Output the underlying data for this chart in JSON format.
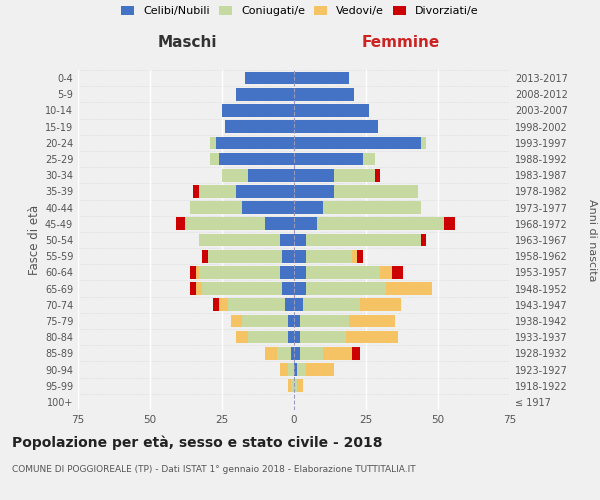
{
  "age_groups": [
    "100+",
    "95-99",
    "90-94",
    "85-89",
    "80-84",
    "75-79",
    "70-74",
    "65-69",
    "60-64",
    "55-59",
    "50-54",
    "45-49",
    "40-44",
    "35-39",
    "30-34",
    "25-29",
    "20-24",
    "15-19",
    "10-14",
    "5-9",
    "0-4"
  ],
  "birth_years": [
    "≤ 1917",
    "1918-1922",
    "1923-1927",
    "1928-1932",
    "1933-1937",
    "1938-1942",
    "1943-1947",
    "1948-1952",
    "1953-1957",
    "1958-1962",
    "1963-1967",
    "1968-1972",
    "1973-1977",
    "1978-1982",
    "1983-1987",
    "1988-1992",
    "1993-1997",
    "1998-2002",
    "2003-2007",
    "2008-2012",
    "2013-2017"
  ],
  "maschi_celibi": [
    0,
    0,
    0,
    1,
    2,
    2,
    3,
    4,
    5,
    4,
    5,
    10,
    18,
    20,
    16,
    26,
    27,
    24,
    25,
    20,
    17
  ],
  "maschi_coniugati": [
    0,
    1,
    2,
    5,
    14,
    16,
    20,
    28,
    28,
    26,
    28,
    28,
    18,
    13,
    9,
    3,
    2,
    0,
    0,
    0,
    0
  ],
  "maschi_vedovi": [
    0,
    1,
    3,
    4,
    4,
    4,
    3,
    2,
    1,
    0,
    0,
    0,
    0,
    0,
    0,
    0,
    0,
    0,
    0,
    0,
    0
  ],
  "maschi_divorziati": [
    0,
    0,
    0,
    0,
    0,
    0,
    2,
    2,
    2,
    2,
    0,
    3,
    0,
    2,
    0,
    0,
    0,
    0,
    0,
    0,
    0
  ],
  "femmine_nubili": [
    0,
    0,
    1,
    2,
    2,
    2,
    3,
    4,
    4,
    4,
    4,
    8,
    10,
    14,
    14,
    24,
    44,
    29,
    26,
    21,
    19
  ],
  "femmine_coniugate": [
    0,
    1,
    3,
    8,
    16,
    17,
    20,
    28,
    26,
    16,
    40,
    44,
    34,
    29,
    14,
    4,
    2,
    0,
    0,
    0,
    0
  ],
  "femmine_vedove": [
    0,
    2,
    10,
    10,
    18,
    16,
    14,
    16,
    4,
    2,
    0,
    0,
    0,
    0,
    0,
    0,
    0,
    0,
    0,
    0,
    0
  ],
  "femmine_divorziate": [
    0,
    0,
    0,
    3,
    0,
    0,
    0,
    0,
    4,
    2,
    2,
    4,
    0,
    0,
    2,
    0,
    0,
    0,
    0,
    0,
    0
  ],
  "colors": {
    "celibi_nubili": "#4472c4",
    "coniugati": "#c5d9a0",
    "vedovi": "#f5c264",
    "divorziati": "#cc0000"
  },
  "xlim": 75,
  "title": "Popolazione per età, sesso e stato civile - 2018",
  "subtitle": "COMUNE DI POGGIOREALE (TP) - Dati ISTAT 1° gennaio 2018 - Elaborazione TUTTITALIA.IT",
  "ylabel_left": "Fasce di età",
  "ylabel_right": "Anni di nascita",
  "xlabel_left": "Maschi",
  "xlabel_right": "Femmine",
  "background_color": "#f0f0f0"
}
